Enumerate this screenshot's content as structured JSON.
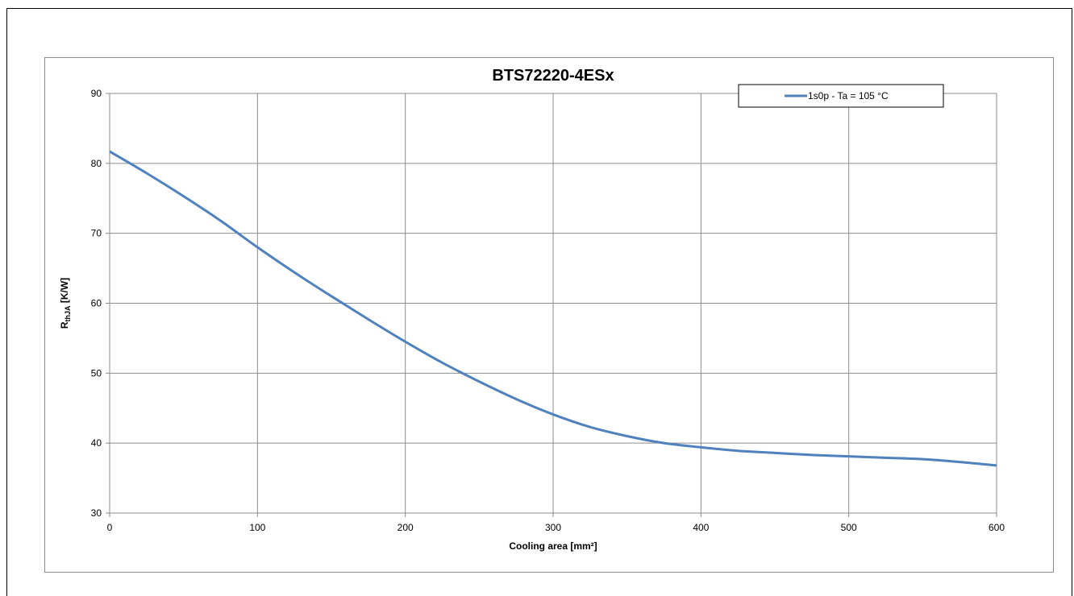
{
  "chart_data": {
    "type": "line",
    "title": "BTS72220-4ESx",
    "xlabel": "Cooling area [mm²]",
    "ylabel_main": "R",
    "ylabel_sub": "thJA",
    "ylabel_unit": " [K/W]",
    "xlim": [
      0,
      600
    ],
    "ylim": [
      30,
      90
    ],
    "x_ticks": [
      0,
      100,
      200,
      300,
      400,
      500,
      600
    ],
    "y_ticks": [
      30,
      40,
      50,
      60,
      70,
      80,
      90
    ],
    "grid": true,
    "legend_position": "top-right",
    "series": [
      {
        "name": "1s0p - Ta = 105 °C",
        "color": "#4f81bd",
        "x": [
          0,
          25,
          50,
          75,
          100,
          125,
          150,
          175,
          200,
          225,
          250,
          275,
          300,
          325,
          350,
          375,
          400,
          425,
          450,
          475,
          500,
          525,
          550,
          575,
          600
        ],
        "y": [
          81.7,
          78.6,
          75.3,
          71.8,
          68.0,
          64.4,
          61.0,
          57.7,
          54.5,
          51.5,
          48.8,
          46.3,
          44.1,
          42.3,
          41.0,
          40.0,
          39.4,
          38.9,
          38.6,
          38.3,
          38.1,
          37.9,
          37.7,
          37.3,
          36.8
        ]
      }
    ]
  }
}
